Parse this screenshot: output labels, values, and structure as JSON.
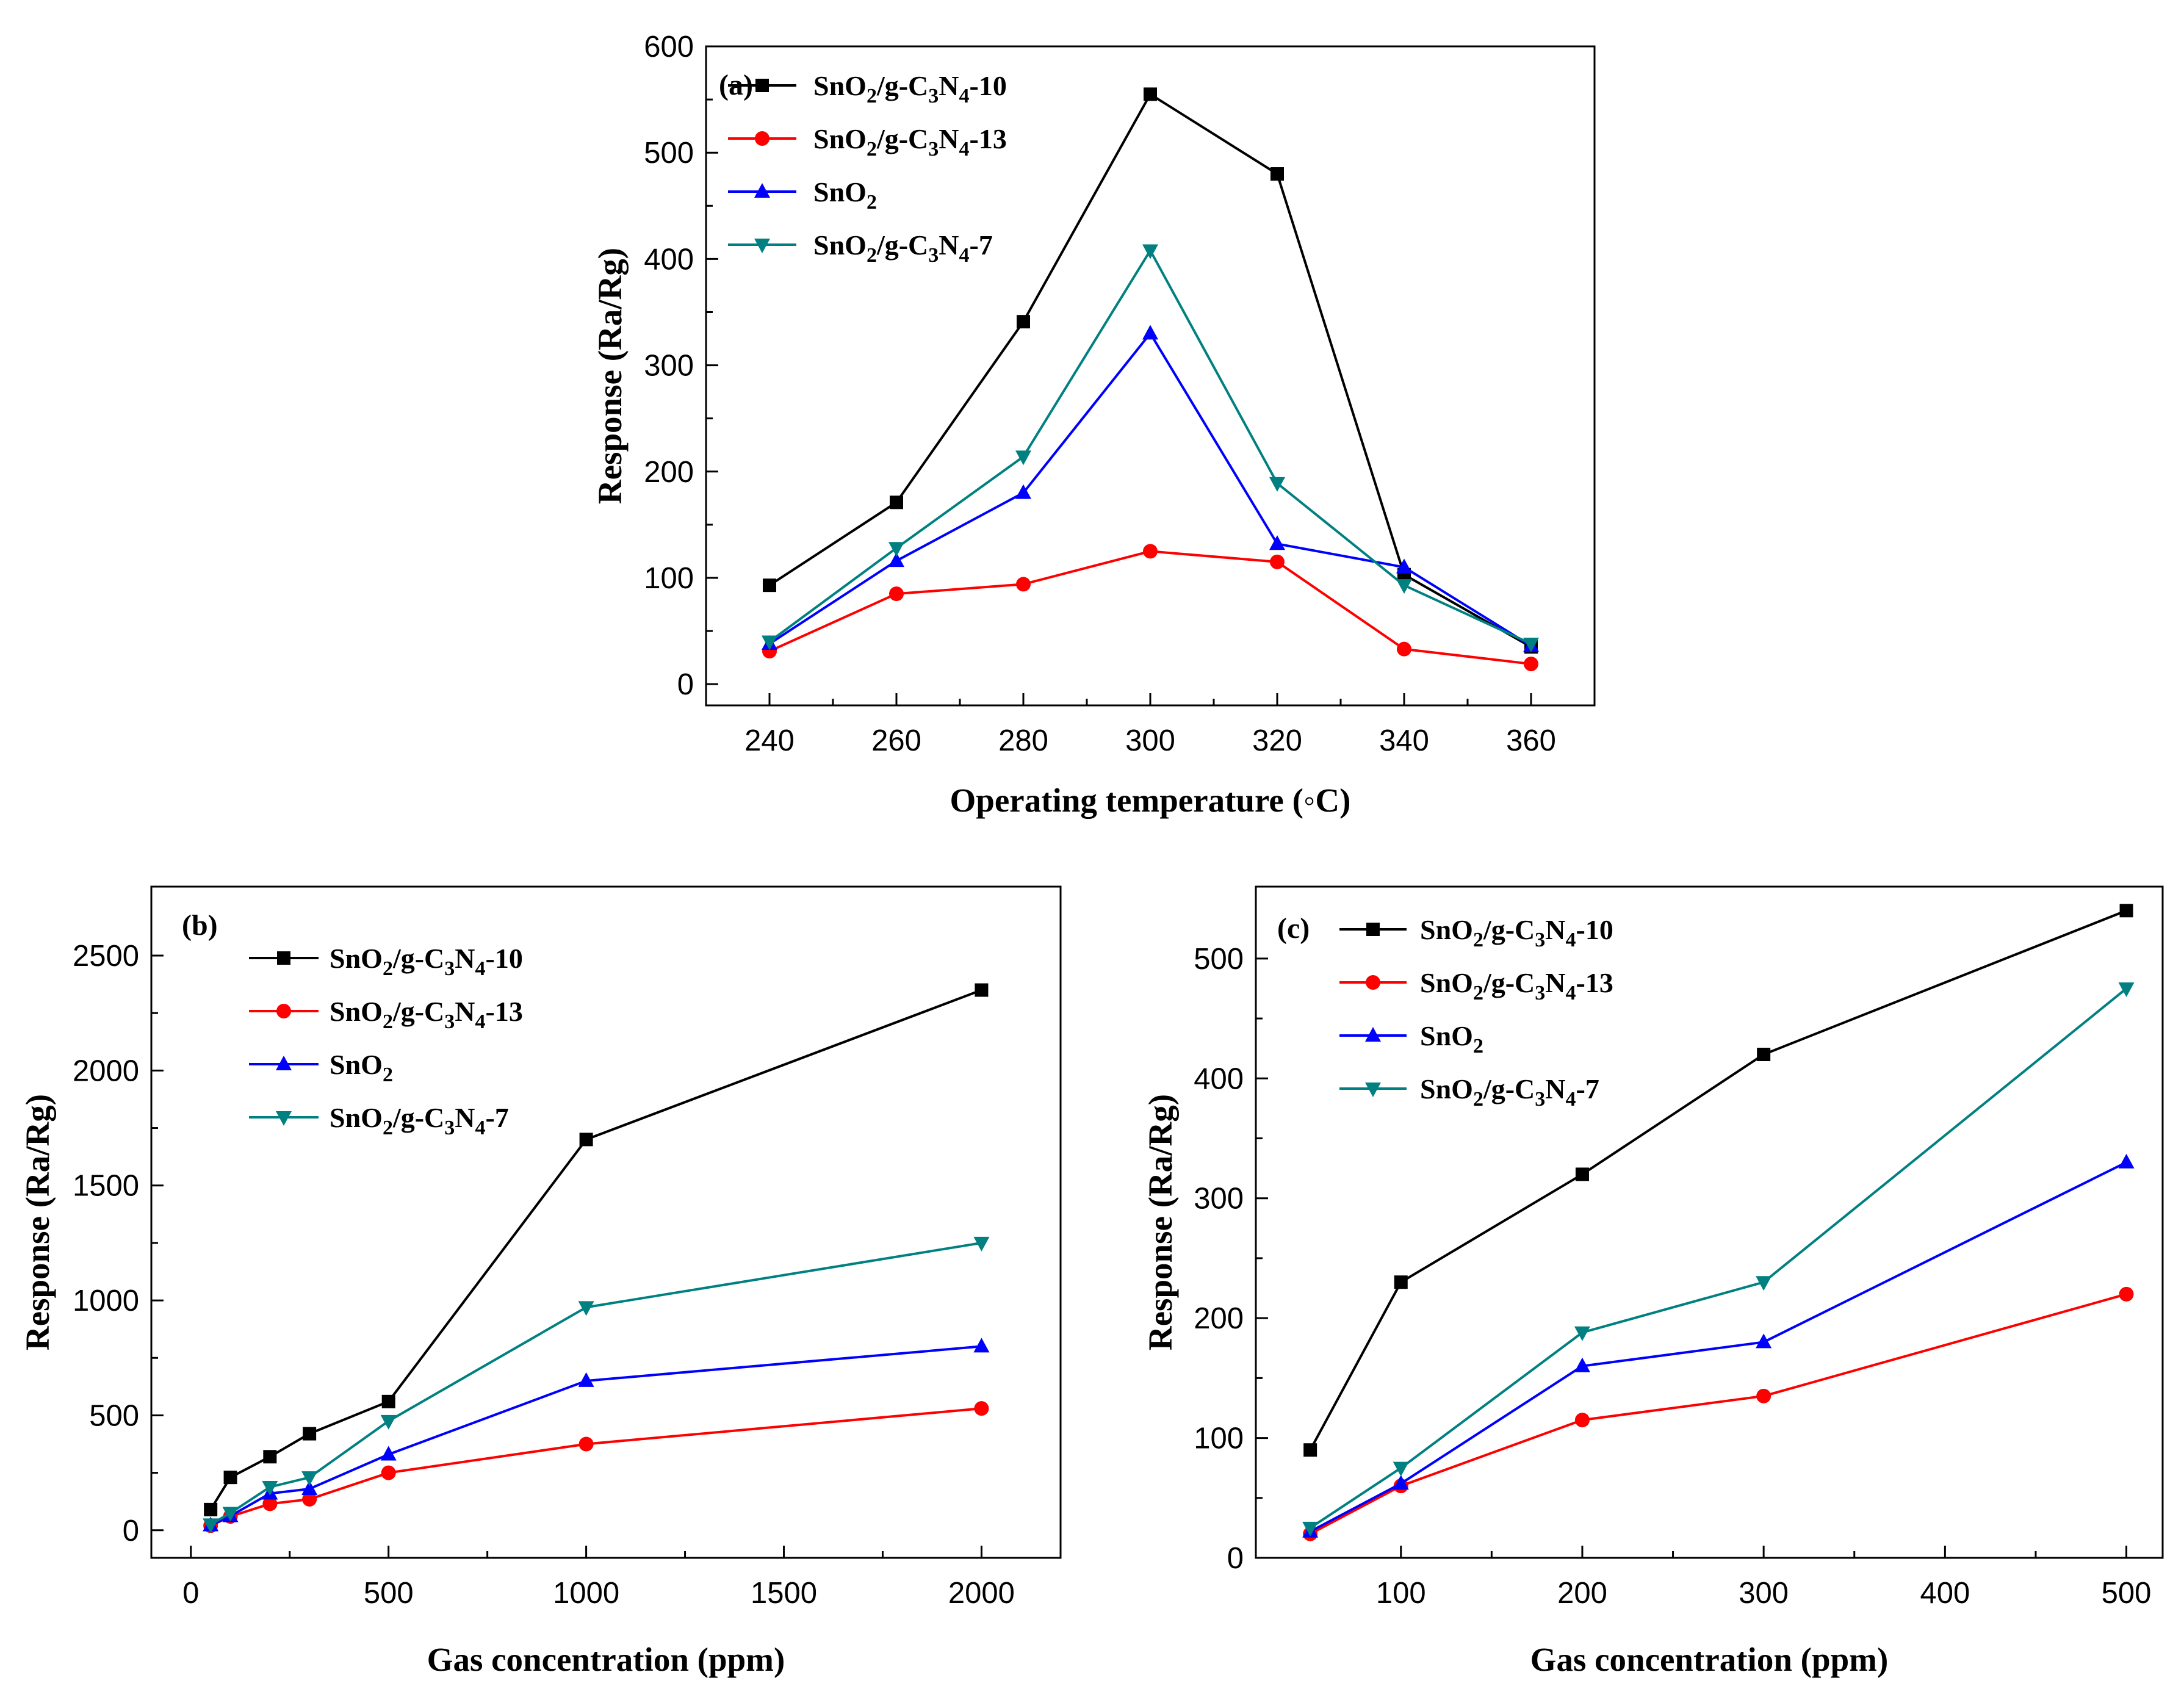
{
  "colors": {
    "SnO2/g-C3N4-10": "#000000",
    "SnO2/g-C3N4-13": "#ff0000",
    "SnO2": "#0000ff",
    "SnO2/g-C3N4-7": "#008080"
  },
  "legend_labels": {
    "s10": {
      "a": "SnO",
      "b": "2",
      "c": "/g-C",
      "d": "3",
      "e": "N",
      "f": "4",
      "g": "-10"
    },
    "s13": {
      "a": "SnO",
      "b": "2",
      "c": "/g-C",
      "d": "3",
      "e": "N",
      "f": "4",
      "g": "-13"
    },
    "sno2": {
      "a": "SnO",
      "b": "2"
    },
    "s7": {
      "a": "SnO",
      "b": "2",
      "c": "/g-C",
      "d": "3",
      "e": "N",
      "f": "4",
      "g": "-7"
    }
  },
  "chart_data": [
    {
      "id": "a",
      "type": "line",
      "panel_label": "(a)",
      "xlabel": "Operating temperature (◦C)",
      "ylabel": "Response (Ra/Rg)",
      "xlim": [
        230,
        370
      ],
      "ylim": [
        -20,
        600
      ],
      "xticks": [
        240,
        260,
        280,
        300,
        320,
        340,
        360
      ],
      "yticks": [
        0,
        100,
        200,
        300,
        400,
        500,
        600
      ],
      "legend_position": "top-left",
      "grid": false,
      "x": [
        240,
        260,
        280,
        300,
        320,
        340,
        360
      ],
      "series": [
        {
          "name": "SnO2/g-C3N4-10",
          "marker": "square",
          "values": [
            93,
            171,
            341,
            555,
            480,
            103,
            35
          ]
        },
        {
          "name": "SnO2/g-C3N4-13",
          "marker": "circle",
          "values": [
            31,
            85,
            94,
            125,
            115,
            33,
            19
          ]
        },
        {
          "name": "SnO2",
          "marker": "triangle-up",
          "values": [
            38,
            116,
            180,
            330,
            132,
            110,
            36
          ]
        },
        {
          "name": "SnO2/g-C3N4-7",
          "marker": "triangle-down",
          "values": [
            40,
            128,
            214,
            408,
            189,
            93,
            38
          ]
        }
      ]
    },
    {
      "id": "b",
      "type": "line",
      "panel_label": "(b)",
      "xlabel": "Gas concentration (ppm)",
      "ylabel": "Response (Ra/Rg)",
      "xlim": [
        -100,
        2200
      ],
      "ylim": [
        -120,
        2800
      ],
      "xticks": [
        0,
        500,
        1000,
        1500,
        2000
      ],
      "yticks": [
        0,
        500,
        1000,
        1500,
        2000,
        2500
      ],
      "legend_position": "top-left",
      "grid": false,
      "x": [
        50,
        100,
        200,
        300,
        500,
        1000,
        2000
      ],
      "series": [
        {
          "name": "SnO2/g-C3N4-10",
          "marker": "square",
          "values": [
            90,
            230,
            320,
            420,
            560,
            1700,
            2350
          ]
        },
        {
          "name": "SnO2/g-C3N4-13",
          "marker": "circle",
          "values": [
            20,
            60,
            115,
            135,
            250,
            375,
            530
          ]
        },
        {
          "name": "SnO2",
          "marker": "triangle-up",
          "values": [
            22,
            62,
            160,
            180,
            330,
            650,
            800
          ]
        },
        {
          "name": "SnO2/g-C3N4-7",
          "marker": "triangle-down",
          "values": [
            25,
            75,
            188,
            230,
            475,
            970,
            1250
          ]
        }
      ]
    },
    {
      "id": "c",
      "type": "line",
      "panel_label": "(c)",
      "xlabel": "Gas concentration (ppm)",
      "ylabel": "Response (Ra/Rg)",
      "xlim": [
        20,
        520
      ],
      "ylim": [
        0,
        560
      ],
      "xticks": [
        100,
        200,
        300,
        400,
        500
      ],
      "yticks": [
        0,
        100,
        200,
        300,
        400,
        500
      ],
      "legend_position": "top-left",
      "grid": false,
      "x": [
        50,
        100,
        200,
        300,
        500
      ],
      "series": [
        {
          "name": "SnO2/g-C3N4-10",
          "marker": "square",
          "values": [
            90,
            230,
            320,
            420,
            540
          ]
        },
        {
          "name": "SnO2/g-C3N4-13",
          "marker": "circle",
          "values": [
            20,
            60,
            115,
            135,
            220
          ]
        },
        {
          "name": "SnO2",
          "marker": "triangle-up",
          "values": [
            22,
            62,
            160,
            180,
            330
          ]
        },
        {
          "name": "SnO2/g-C3N4-7",
          "marker": "triangle-down",
          "values": [
            25,
            75,
            188,
            230,
            475
          ]
        }
      ]
    }
  ]
}
